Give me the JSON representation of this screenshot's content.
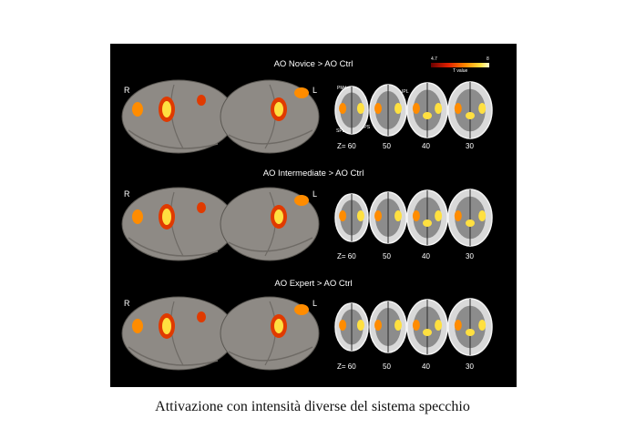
{
  "figure": {
    "colorbar": {
      "min_label": "4.7",
      "max_label": "8",
      "unit_label": "T value",
      "colors": [
        "#6b0000",
        "#e02000",
        "#ff8c00",
        "#ffe040",
        "#ffffd0"
      ]
    },
    "row_titles": [
      "AO Novice > AO Ctrl",
      "AO Intermediate > AO Ctrl",
      "AO Expert > AO Ctrl"
    ],
    "hemisphere_labels": {
      "right": "R",
      "left": "L"
    },
    "slice_labels": [
      "Z= 60",
      "50",
      "40",
      "30"
    ],
    "region_labels": {
      "pmd": "PMd",
      "ipl": "IPL",
      "spl": "SPL",
      "ips": "IPS"
    },
    "colors": {
      "background": "#000000",
      "brain": "#8e8a85",
      "activation_hot": "#ffe040",
      "activation_warm": "#ff8c00",
      "activation_base": "#e03a00"
    }
  },
  "caption": "Attivazione con intensità diverse del sistema specchio"
}
